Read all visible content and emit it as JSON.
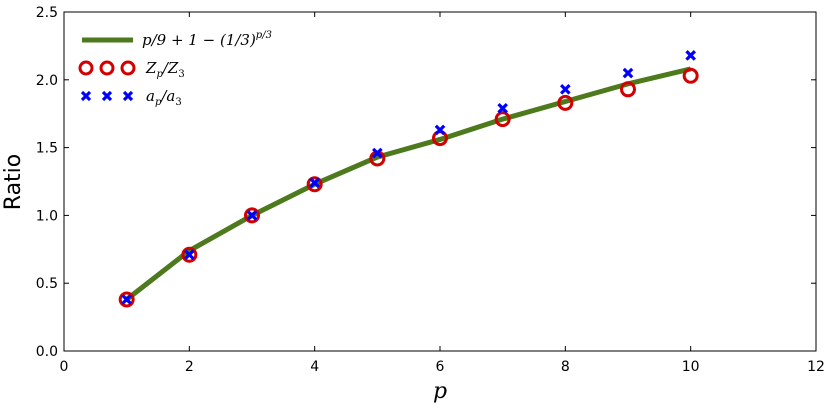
{
  "chart_data": {
    "type": "line",
    "xlabel": "p",
    "ylabel": "Ratio",
    "xlim": [
      0,
      12
    ],
    "ylim": [
      0,
      2.5
    ],
    "xticks": [
      "0",
      "2",
      "4",
      "6",
      "8",
      "10",
      "12"
    ],
    "yticks": [
      "0.0",
      "0.5",
      "1.0",
      "1.5",
      "2.0",
      "2.5"
    ],
    "grid": false,
    "legend_position": "top-left",
    "series": [
      {
        "name": "p/9 + 1 − (1/3)^{p/3}",
        "kind": "line",
        "color": "#4c7a1c",
        "x": [
          1,
          2,
          3,
          4,
          5,
          6,
          7,
          8,
          9,
          10
        ],
        "values": [
          0.38,
          0.74,
          1.0,
          1.23,
          1.43,
          1.56,
          1.71,
          1.84,
          1.97,
          2.08
        ]
      },
      {
        "name": "Z_p/Z_3",
        "kind": "scatter",
        "marker": "circle",
        "color": "#d40000",
        "x": [
          1,
          2,
          3,
          4,
          5,
          6,
          7,
          8,
          9,
          10
        ],
        "values": [
          0.38,
          0.71,
          1.0,
          1.23,
          1.42,
          1.57,
          1.71,
          1.83,
          1.93,
          2.03
        ]
      },
      {
        "name": "a_p/a_3",
        "kind": "scatter",
        "marker": "x",
        "color": "#0000ff",
        "x": [
          1,
          2,
          3,
          4,
          5,
          6,
          7,
          8,
          9,
          10
        ],
        "values": [
          0.38,
          0.71,
          1.0,
          1.24,
          1.46,
          1.63,
          1.79,
          1.93,
          2.05,
          2.18
        ]
      }
    ]
  },
  "legend": {
    "line_prefix": "p/9 + 1 − (1/3)",
    "line_exp": "p/3",
    "z_main": "Z",
    "z_sub": "p",
    "z_mid": "/Z",
    "z_sub2": "3",
    "a_main": "a",
    "a_sub": "p",
    "a_mid": "/a",
    "a_sub2": "3"
  }
}
